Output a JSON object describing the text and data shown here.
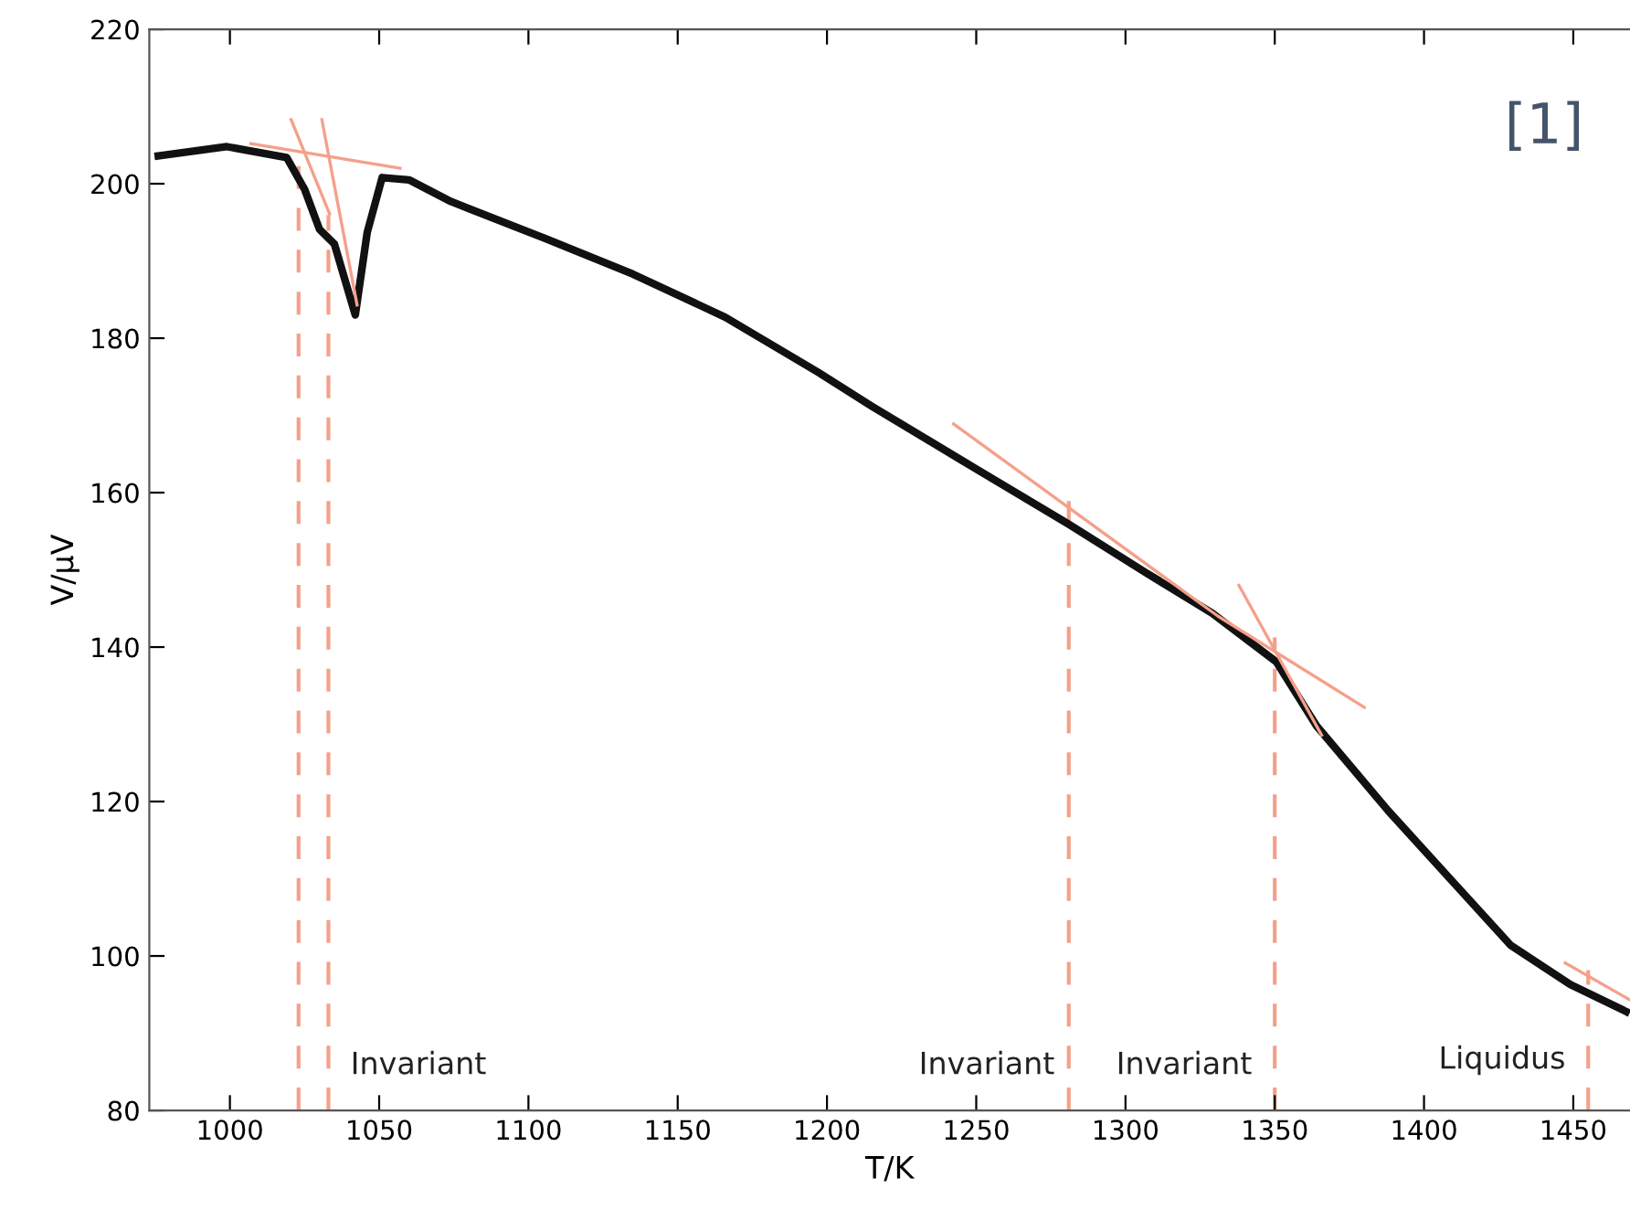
{
  "chart_data": {
    "type": "line",
    "xlabel": "T/K",
    "ylabel": "V/μV",
    "xlim": [
      973,
      1469
    ],
    "xticks": [
      1000,
      1050,
      1100,
      1150,
      1200,
      1250,
      1300,
      1350,
      1400,
      1450
    ],
    "ylim": [
      80,
      220
    ],
    "yticks": [
      80,
      100,
      120,
      140,
      160,
      180,
      200,
      220
    ],
    "grid": false,
    "legend": false,
    "series": [
      {
        "color": "#111111",
        "x": [
          976,
          999,
          1019,
          1025,
          1030,
          1035,
          1042,
          1046,
          1051,
          1060,
          1074,
          1105,
          1135,
          1166,
          1197,
          1215,
          1245.5,
          1281,
          1307,
          1329,
          1350.5,
          1364,
          1388,
          1408.5,
          1429,
          1449,
          1467.7
        ],
        "values": [
          203.6,
          204.8,
          203.4,
          199.3,
          194.1,
          192.2,
          183,
          193.7,
          200.8,
          200.5,
          197.7,
          193,
          188.3,
          182.7,
          175.6,
          171.2,
          164.1,
          155.9,
          149.6,
          144.4,
          138.1,
          129.8,
          118.8,
          110.1,
          101.4,
          96.3,
          92.8
        ]
      },
      {
        "color": "#f4a08a",
        "x": [
          1007,
          1057
        ],
        "values": [
          205.2,
          202
        ]
      },
      {
        "color": "#f4a08a",
        "x": [
          1020.5,
          1033.4
        ],
        "values": [
          208.3,
          196.1
        ]
      },
      {
        "color": "#f4a08a",
        "x": [
          1030.8,
          1042.6
        ],
        "values": [
          208.3,
          184.3
        ]
      },
      {
        "color": "#f4a08a",
        "x": [
          1242.4,
          1331,
          1380
        ],
        "values": [
          168.9,
          144,
          132.2
        ]
      },
      {
        "color": "#f4a08a",
        "x": [
          1338,
          1365.7
        ],
        "values": [
          148,
          128.6
        ]
      },
      {
        "color": "#f4a08a",
        "x": [
          1447.3,
          1469
        ],
        "values": [
          99.1,
          94.3
        ]
      }
    ],
    "ref_lines": [
      {
        "axis": "x",
        "value": 1023,
        "color": "#f4a08a",
        "line_style": "dashed"
      },
      {
        "axis": "x",
        "value": 1033,
        "color": "#f4a08a",
        "line_style": "dashed"
      },
      {
        "axis": "x",
        "value": 1281,
        "color": "#f4a08a",
        "line_style": "dashed"
      },
      {
        "axis": "x",
        "value": 1350,
        "color": "#f4a08a",
        "line_style": "dashed"
      },
      {
        "axis": "x",
        "value": 1455,
        "color": "#f4a08a",
        "line_style": "dashed"
      }
    ],
    "annotations": [
      "Invariant",
      "Invariant",
      "Invariant",
      "Liquidus",
      "[1]"
    ]
  }
}
